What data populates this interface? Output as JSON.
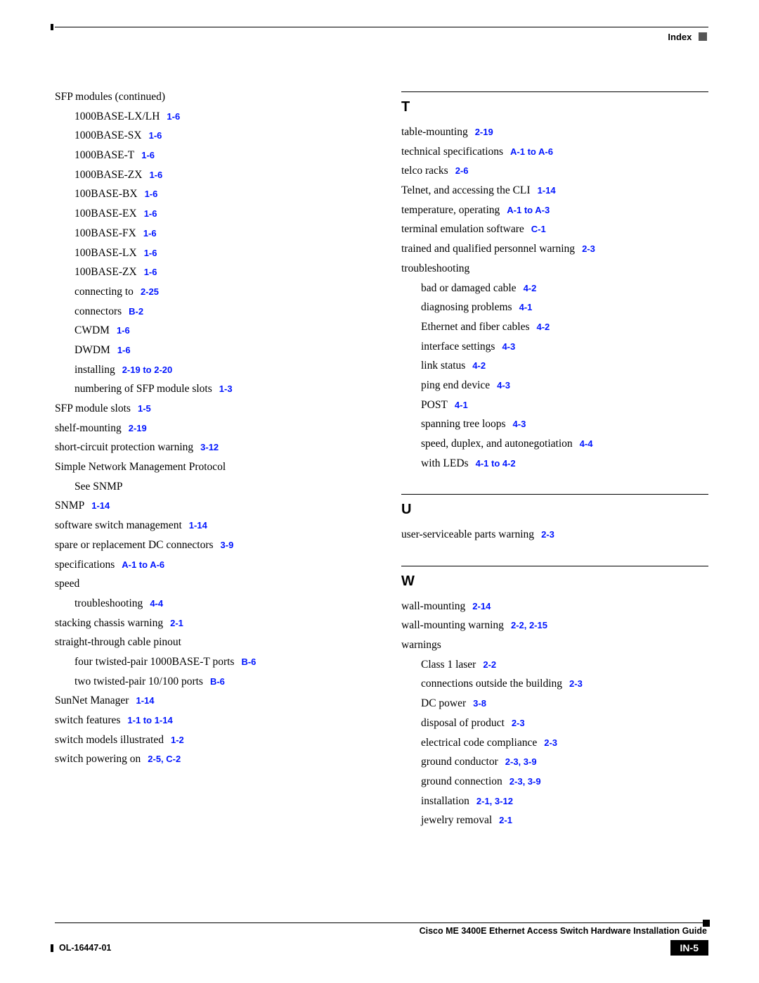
{
  "header": {
    "label": "Index"
  },
  "footer": {
    "title": "Cisco ME 3400E Ethernet Access Switch Hardware Installation Guide",
    "docnum": "OL-16447-01",
    "pagenum": "IN-5"
  },
  "ref_color": "#0015ff",
  "leftCol": [
    {
      "indent": 0,
      "text": "SFP modules (continued)"
    },
    {
      "indent": 1,
      "text": "1000BASE-LX/LH",
      "ref": "1-6"
    },
    {
      "indent": 1,
      "text": "1000BASE-SX",
      "ref": "1-6"
    },
    {
      "indent": 1,
      "text": "1000BASE-T",
      "ref": "1-6"
    },
    {
      "indent": 1,
      "text": "1000BASE-ZX",
      "ref": "1-6"
    },
    {
      "indent": 1,
      "text": "100BASE-BX",
      "ref": "1-6"
    },
    {
      "indent": 1,
      "text": "100BASE-EX",
      "ref": "1-6"
    },
    {
      "indent": 1,
      "text": "100BASE-FX",
      "ref": "1-6"
    },
    {
      "indent": 1,
      "text": "100BASE-LX",
      "ref": "1-6"
    },
    {
      "indent": 1,
      "text": "100BASE-ZX",
      "ref": "1-6"
    },
    {
      "indent": 1,
      "text": "connecting to",
      "ref": "2-25"
    },
    {
      "indent": 1,
      "text": "connectors",
      "ref": "B-2"
    },
    {
      "indent": 1,
      "text": "CWDM",
      "ref": "1-6"
    },
    {
      "indent": 1,
      "text": "DWDM",
      "ref": "1-6"
    },
    {
      "indent": 1,
      "text": "installing",
      "ref": "2-19 to 2-20"
    },
    {
      "indent": 1,
      "text": "numbering of SFP module slots",
      "ref": "1-3"
    },
    {
      "indent": 0,
      "text": "SFP module slots",
      "ref": "1-5"
    },
    {
      "indent": 0,
      "text": "shelf-mounting",
      "ref": "2-19"
    },
    {
      "indent": 0,
      "text": "short-circuit protection warning",
      "ref": "3-12"
    },
    {
      "indent": 0,
      "text": "Simple Network Management Protocol"
    },
    {
      "indent": 1,
      "text": "See SNMP"
    },
    {
      "indent": 0,
      "text": "SNMP",
      "ref": "1-14"
    },
    {
      "indent": 0,
      "text": "software switch management",
      "ref": "1-14"
    },
    {
      "indent": 0,
      "text": "spare or replacement DC connectors",
      "ref": "3-9"
    },
    {
      "indent": 0,
      "text": "specifications",
      "ref": "A-1 to A-6"
    },
    {
      "indent": 0,
      "text": "speed"
    },
    {
      "indent": 1,
      "text": "troubleshooting",
      "ref": "4-4"
    },
    {
      "indent": 0,
      "text": "stacking chassis warning",
      "ref": "2-1"
    },
    {
      "indent": 0,
      "text": "straight-through cable pinout"
    },
    {
      "indent": 1,
      "text": "four twisted-pair 1000BASE-T ports",
      "ref": "B-6"
    },
    {
      "indent": 1,
      "text": "two twisted-pair 10/100 ports",
      "ref": "B-6"
    },
    {
      "indent": 0,
      "text": "SunNet Manager",
      "ref": "1-14"
    },
    {
      "indent": 0,
      "text": "switch features",
      "ref": "1-1 to 1-14"
    },
    {
      "indent": 0,
      "text": "switch models illustrated",
      "ref": "1-2"
    },
    {
      "indent": 0,
      "text": "switch powering on",
      "ref": "2-5, C-2"
    }
  ],
  "rightCol": [
    {
      "letter": "T",
      "entries": [
        {
          "indent": 0,
          "text": "table-mounting",
          "ref": "2-19"
        },
        {
          "indent": 0,
          "text": "technical specifications",
          "ref": "A-1 to A-6"
        },
        {
          "indent": 0,
          "text": "telco racks",
          "ref": "2-6"
        },
        {
          "indent": 0,
          "text": "Telnet, and accessing the CLI",
          "ref": "1-14"
        },
        {
          "indent": 0,
          "text": "temperature, operating",
          "ref": "A-1 to A-3"
        },
        {
          "indent": 0,
          "text": "terminal emulation software",
          "ref": "C-1"
        },
        {
          "indent": 0,
          "text": "trained and qualified personnel warning",
          "ref": "2-3"
        },
        {
          "indent": 0,
          "text": "troubleshooting"
        },
        {
          "indent": 1,
          "text": "bad or damaged cable",
          "ref": "4-2"
        },
        {
          "indent": 1,
          "text": "diagnosing problems",
          "ref": "4-1"
        },
        {
          "indent": 1,
          "text": "Ethernet and fiber cables",
          "ref": "4-2"
        },
        {
          "indent": 1,
          "text": "interface settings",
          "ref": "4-3"
        },
        {
          "indent": 1,
          "text": "link status",
          "ref": "4-2"
        },
        {
          "indent": 1,
          "text": "ping end device",
          "ref": "4-3"
        },
        {
          "indent": 1,
          "text": "POST",
          "ref": "4-1"
        },
        {
          "indent": 1,
          "text": "spanning tree loops",
          "ref": "4-3"
        },
        {
          "indent": 1,
          "text": "speed, duplex, and autonegotiation",
          "ref": "4-4"
        },
        {
          "indent": 1,
          "text": "with LEDs",
          "ref": "4-1 to 4-2"
        }
      ]
    },
    {
      "letter": "U",
      "entries": [
        {
          "indent": 0,
          "text": "user-serviceable parts warning",
          "ref": "2-3"
        }
      ]
    },
    {
      "letter": "W",
      "entries": [
        {
          "indent": 0,
          "text": "wall-mounting",
          "ref": "2-14"
        },
        {
          "indent": 0,
          "text": "wall-mounting warning",
          "ref": "2-2, 2-15"
        },
        {
          "indent": 0,
          "text": "warnings"
        },
        {
          "indent": 1,
          "text": "Class 1 laser",
          "ref": "2-2"
        },
        {
          "indent": 1,
          "text": "connections outside the building",
          "ref": "2-3"
        },
        {
          "indent": 1,
          "text": "DC power",
          "ref": "3-8"
        },
        {
          "indent": 1,
          "text": "disposal of product",
          "ref": "2-3"
        },
        {
          "indent": 1,
          "text": "electrical code compliance",
          "ref": "2-3"
        },
        {
          "indent": 1,
          "text": "ground conductor",
          "ref": "2-3, 3-9"
        },
        {
          "indent": 1,
          "text": "ground connection",
          "ref": "2-3, 3-9"
        },
        {
          "indent": 1,
          "text": "installation",
          "ref": "2-1, 3-12"
        },
        {
          "indent": 1,
          "text": "jewelry removal",
          "ref": "2-1"
        }
      ]
    }
  ]
}
